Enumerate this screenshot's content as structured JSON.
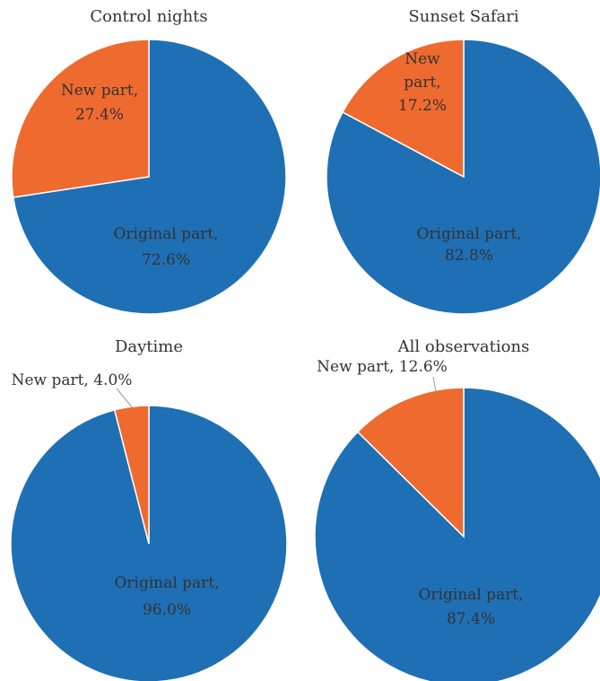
{
  "chart_data": [
    {
      "type": "pie",
      "title": "Control nights",
      "categories": [
        "Original part",
        "New part"
      ],
      "values": [
        72.6,
        27.4
      ],
      "labels": [
        [
          "Original part,",
          "72.6%"
        ],
        [
          "New part,",
          "27.4%"
        ]
      ],
      "colors": [
        "#1f6fb5",
        "#ef6a2f"
      ]
    },
    {
      "type": "pie",
      "title": "Sunset Safari",
      "categories": [
        "Original part",
        "New part"
      ],
      "values": [
        82.8,
        17.2
      ],
      "labels": [
        [
          "Original part,",
          "82.8%"
        ],
        [
          "New",
          "part,",
          "17.2%"
        ]
      ],
      "colors": [
        "#1f6fb5",
        "#ef6a2f"
      ]
    },
    {
      "type": "pie",
      "title": "Daytime",
      "categories": [
        "Original part",
        "New part"
      ],
      "values": [
        96.0,
        4.0
      ],
      "labels": [
        [
          "Original part,",
          "96.0%"
        ],
        [
          "New part, 4.0%"
        ]
      ],
      "colors": [
        "#1f6fb5",
        "#ef6a2f"
      ]
    },
    {
      "type": "pie",
      "title": "All observations",
      "categories": [
        "Original part",
        "New part"
      ],
      "values": [
        87.4,
        12.6
      ],
      "labels": [
        [
          "Original part,",
          "87.4%"
        ],
        [
          "New part, 12.6%"
        ]
      ],
      "colors": [
        "#1f6fb5",
        "#ef6a2f"
      ]
    }
  ]
}
